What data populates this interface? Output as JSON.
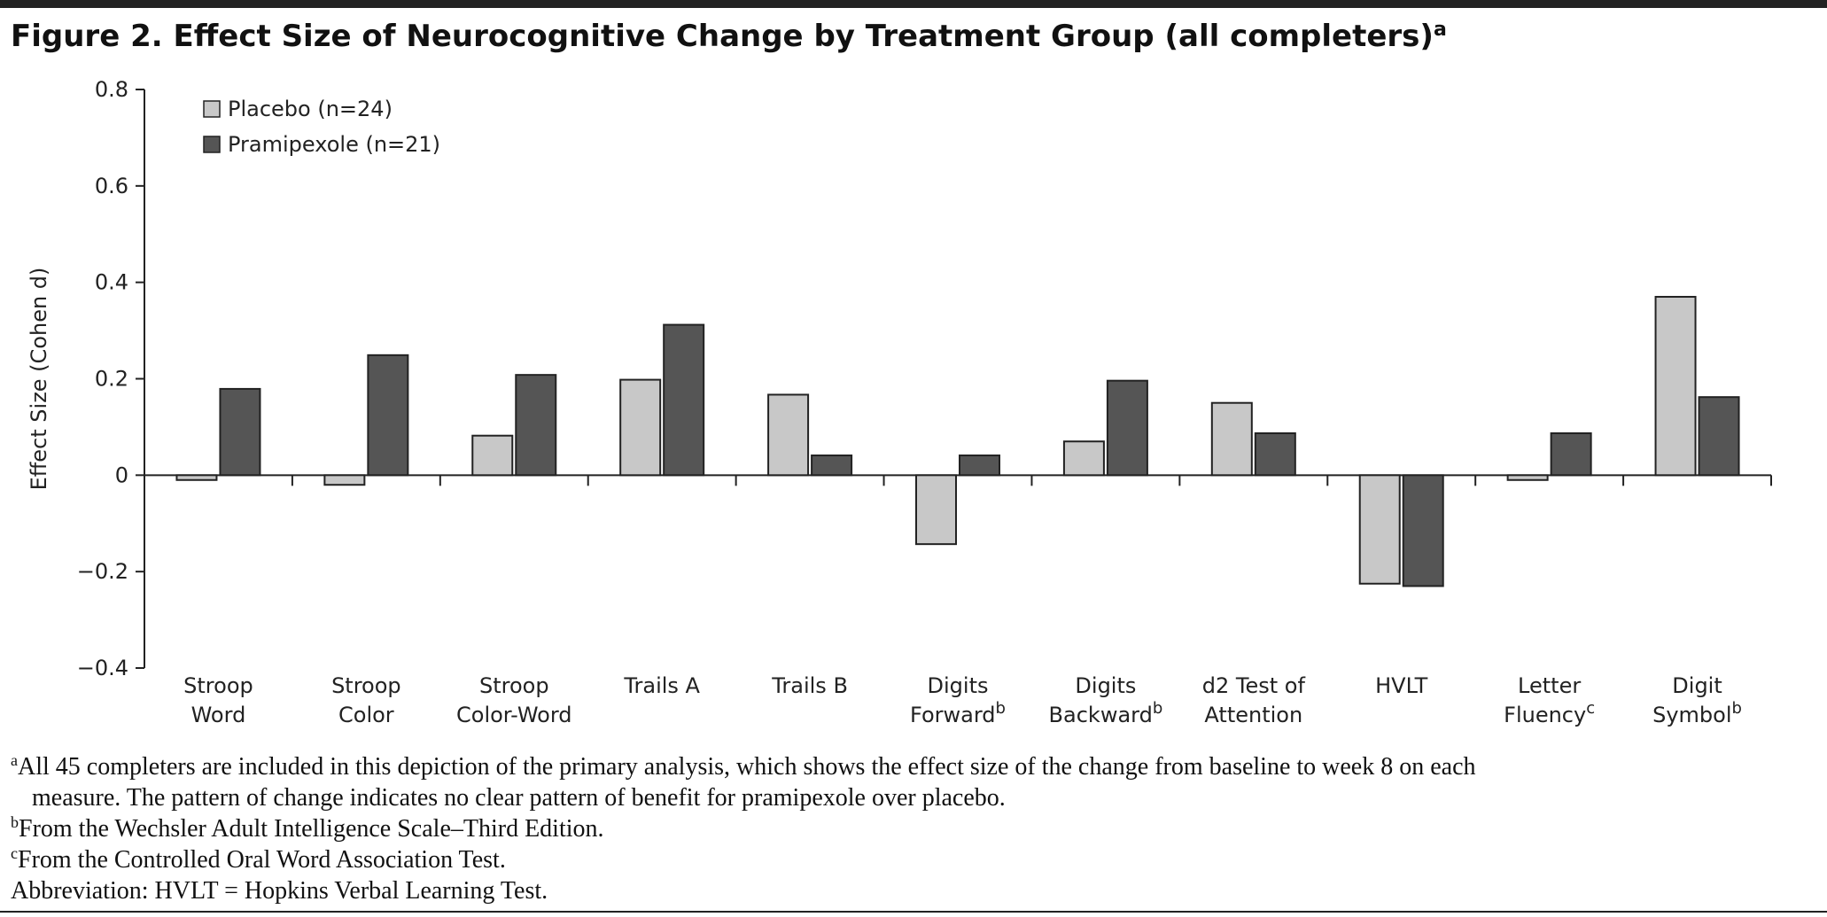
{
  "chart_data": {
    "type": "bar",
    "title": "Figure 2. Effect Size of Neurocognitive Change by Treatment Group (all completers)",
    "title_note": "a",
    "y_label": "Effect Size (Cohen d)",
    "categories": [
      [
        "Stroop",
        "Word"
      ],
      [
        "Stroop",
        "Color"
      ],
      [
        "Stroop",
        "Color-Word"
      ],
      [
        "Trails A"
      ],
      [
        "Trails B"
      ],
      [
        "Digits",
        "Forward"
      ],
      [
        "Digits",
        "Backward"
      ],
      [
        "d2 Test of",
        "Attention"
      ],
      [
        "HVLT"
      ],
      [
        "Letter",
        "Fluency"
      ],
      [
        "Digit",
        "Symbol"
      ]
    ],
    "category_notes": [
      null,
      null,
      null,
      null,
      null,
      "b",
      "b",
      null,
      null,
      "c",
      "b"
    ],
    "series": [
      {
        "name": "Placebo (n=24)",
        "color": "#c8c8c8",
        "values": [
          -0.01,
          -0.02,
          0.082,
          0.198,
          0.167,
          -0.143,
          0.07,
          0.15,
          -0.225,
          -0.01,
          0.37
        ]
      },
      {
        "name": "Pramipexole (n=21)",
        "color": "#555555",
        "values": [
          0.179,
          0.249,
          0.208,
          0.312,
          0.041,
          0.041,
          0.196,
          0.087,
          -0.23,
          0.087,
          0.162
        ]
      }
    ],
    "ylim": [
      -0.4,
      0.8
    ],
    "yticks": [
      {
        "value": -0.4,
        "label": "−0.4"
      },
      {
        "value": -0.2,
        "label": "−0.2"
      },
      0,
      0.2,
      0.4,
      0.6,
      0.8
    ],
    "legend": "top-left",
    "footnotes": [
      {
        "mark": "a",
        "lines": [
          "All 45 completers are included in this depiction of the primary analysis, which shows the effect size of the change from baseline to week 8 on each",
          "measure. The pattern of change indicates no clear pattern of benefit for pramipexole over placebo."
        ]
      },
      {
        "mark": "b",
        "lines": [
          "From the Wechsler Adult Intelligence Scale–Third Edition."
        ]
      },
      {
        "mark": "c",
        "lines": [
          "From the Controlled Oral Word Association Test."
        ]
      },
      {
        "mark": null,
        "lines": [
          "Abbreviation: HVLT = Hopkins Verbal Learning Test."
        ]
      }
    ]
  }
}
